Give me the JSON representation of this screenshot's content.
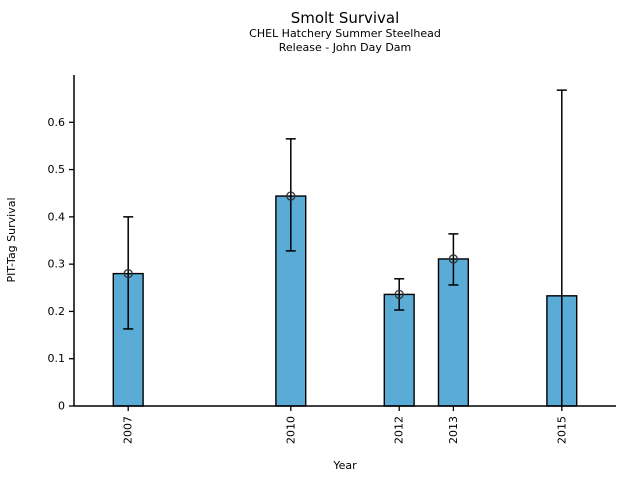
{
  "figure": {
    "title": "Smolt Survival",
    "subtitle1": "CHEL Hatchery Summer Steelhead",
    "subtitle2": "Release - John Day Dam",
    "background": "#ffffff"
  },
  "chart_data": {
    "type": "bar",
    "title": "Smolt Survival",
    "subtitle": [
      "CHEL Hatchery Summer Steelhead",
      "Release - John Day Dam"
    ],
    "xlabel": "Year",
    "ylabel": "PIT-Tag Survival",
    "xlim": [
      2006,
      2016
    ],
    "ylim": [
      0,
      0.7
    ],
    "yticks": [
      0,
      0.1,
      0.2,
      0.3,
      0.4,
      0.5,
      0.6
    ],
    "ytick_labels": [
      "0",
      "0.1",
      "0.2",
      "0.3",
      "0.4",
      "0.5",
      "0.6"
    ],
    "xtick_labels": [
      "2007",
      "2010",
      "2012",
      "2013",
      "2015"
    ],
    "grid": false,
    "legend": false,
    "bar_color": "#5BABD7",
    "bar_edge_color": "#000000",
    "errorbar_color": "#000000",
    "marker_color": "#333333",
    "marker_style": "open-circle",
    "bar_width_years": 0.55,
    "series": [
      {
        "year": 2007,
        "label": "2007",
        "value": 0.28,
        "err_low": 0.163,
        "err_high": 0.4,
        "marker": true,
        "cap_low": true,
        "cap_high": true
      },
      {
        "year": 2010,
        "label": "2010",
        "value": 0.444,
        "err_low": 0.328,
        "err_high": 0.565,
        "marker": true,
        "cap_low": true,
        "cap_high": true
      },
      {
        "year": 2012,
        "label": "2012",
        "value": 0.236,
        "err_low": 0.203,
        "err_high": 0.269,
        "marker": true,
        "cap_low": true,
        "cap_high": true
      },
      {
        "year": 2013,
        "label": "2013",
        "value": 0.311,
        "err_low": 0.256,
        "err_high": 0.364,
        "marker": true,
        "cap_low": true,
        "cap_high": true
      },
      {
        "year": 2015,
        "label": "2015",
        "value": 0.233,
        "err_low": 0.0,
        "err_high": 0.668,
        "marker": false,
        "cap_low": false,
        "cap_high": true
      }
    ]
  }
}
